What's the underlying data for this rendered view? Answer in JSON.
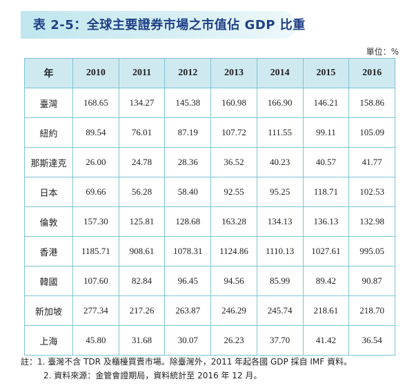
{
  "title": "表 2-5：全球主要證券市場之市值佔 GDP 比重",
  "unit": "單位：%",
  "table": {
    "corner_header": "年",
    "years": [
      "2010",
      "2011",
      "2012",
      "2013",
      "2014",
      "2015",
      "2016"
    ],
    "rows": [
      {
        "label": "臺灣",
        "values": [
          "168.65",
          "134.27",
          "145.38",
          "160.98",
          "166.90",
          "146.21",
          "158.86"
        ]
      },
      {
        "label": "紐約",
        "values": [
          "89.54",
          "76.01",
          "87.19",
          "107.72",
          "111.55",
          "99.11",
          "105.09"
        ]
      },
      {
        "label": "那斯達克",
        "values": [
          "26.00",
          "24.78",
          "28.36",
          "36.52",
          "40.23",
          "40.57",
          "41.77"
        ]
      },
      {
        "label": "日本",
        "values": [
          "69.66",
          "56.28",
          "58.40",
          "92.55",
          "95.25",
          "118.71",
          "102.53"
        ]
      },
      {
        "label": "倫敦",
        "values": [
          "157.30",
          "125.81",
          "128.68",
          "163.28",
          "134.13",
          "136.13",
          "132.98"
        ]
      },
      {
        "label": "香港",
        "values": [
          "1185.71",
          "908.61",
          "1078.31",
          "1124.86",
          "1110.13",
          "1027.61",
          "995.05"
        ]
      },
      {
        "label": "韓國",
        "values": [
          "107.60",
          "82.84",
          "96.45",
          "94.56",
          "85.99",
          "89.42",
          "90.87"
        ]
      },
      {
        "label": "新加坡",
        "values": [
          "277.34",
          "217.26",
          "263.87",
          "246.29",
          "245.74",
          "218.61",
          "218.70"
        ]
      },
      {
        "label": "上海",
        "values": [
          "45.80",
          "31.68",
          "30.07",
          "26.23",
          "37.70",
          "41.42",
          "36.54"
        ]
      }
    ]
  },
  "notes": [
    "註：1. 臺灣不含 TDR 及櫃檯買賣市場。除臺灣外，2011 年起各國 GDP 採自 IMF 資料。",
    "2. 資料來源：金管會證期局，資料統計至 2016 年 12 月。"
  ],
  "colors": {
    "title_text": "#1f3f86",
    "title_banner": "#bfe6ee",
    "header_bg": "#cfe9f1",
    "border": "#7cc4d2"
  }
}
